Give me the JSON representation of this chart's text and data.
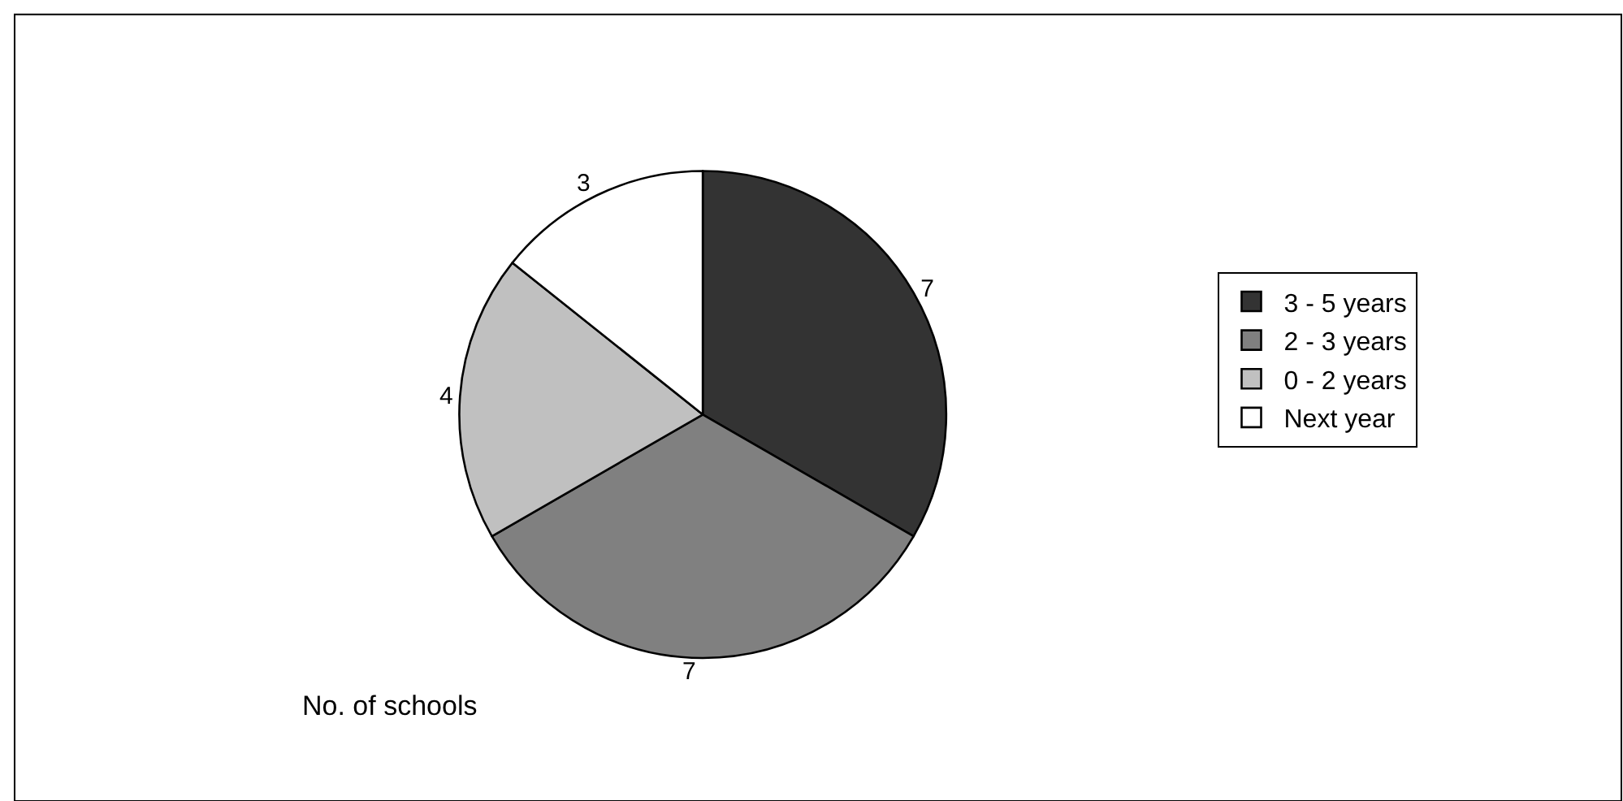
{
  "chart_data": {
    "type": "pie",
    "categories": [
      "3 - 5 years",
      "2 - 3 years",
      "0 - 2 years",
      "Next year"
    ],
    "values": [
      7,
      7,
      4,
      3
    ],
    "colors": [
      "#333333",
      "#808080",
      "#c0c0c0",
      "#ffffff"
    ],
    "data_labels": true,
    "legend": "right",
    "annotations": [
      "No. of schools"
    ]
  }
}
